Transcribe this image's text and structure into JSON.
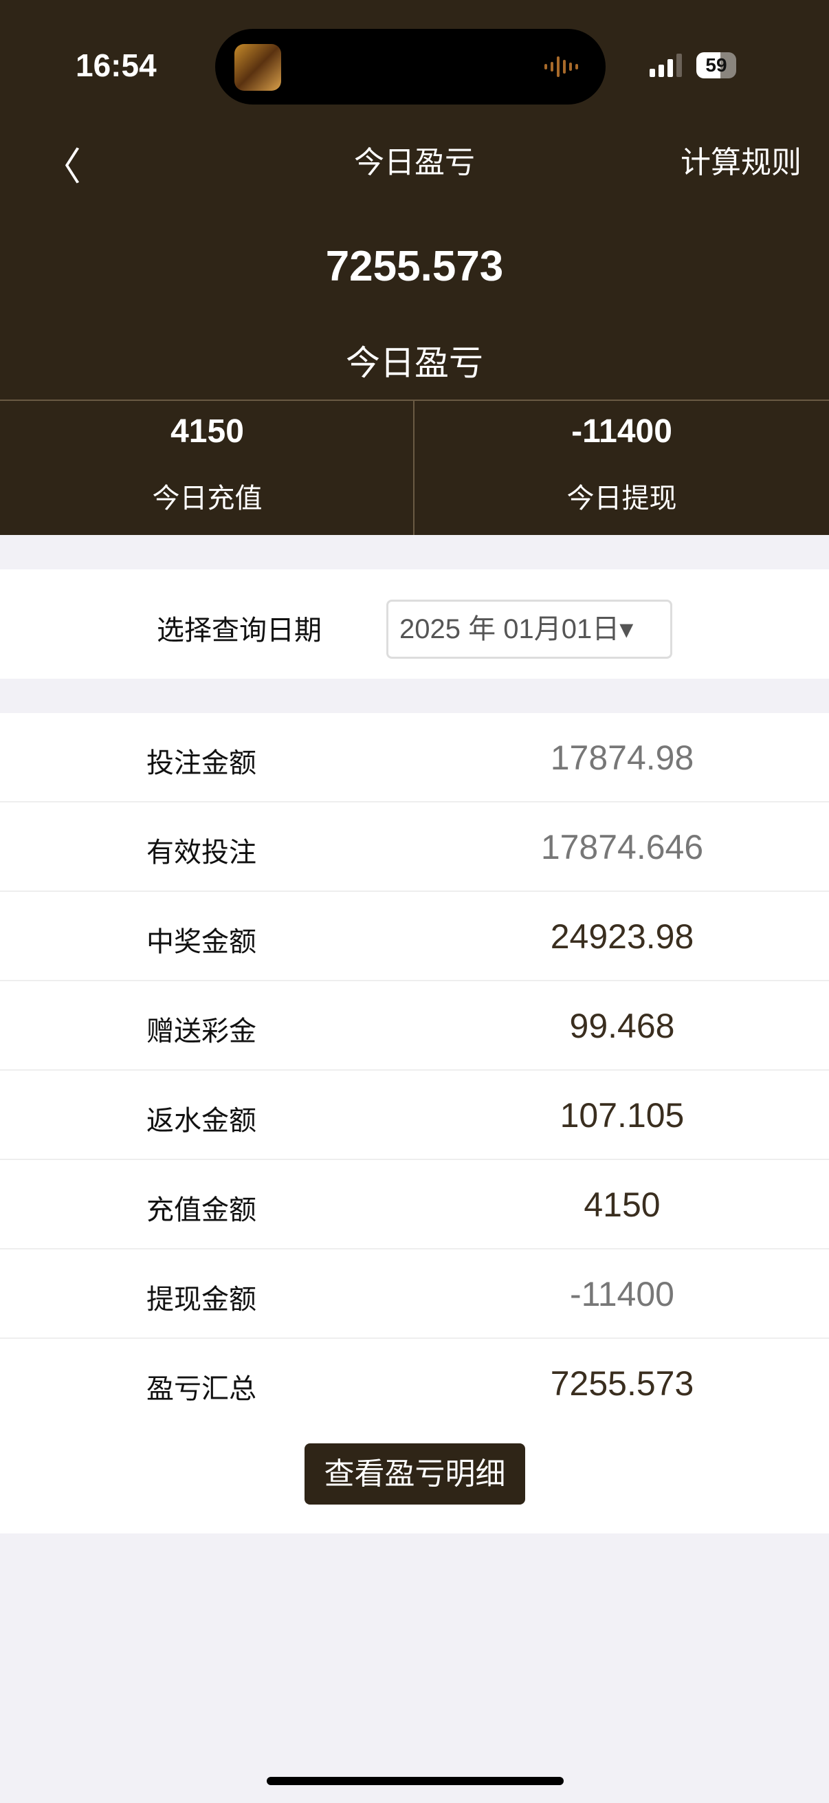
{
  "status_bar": {
    "time": "16:54",
    "battery": "59"
  },
  "nav": {
    "title": "今日盈亏",
    "rules": "计算规则"
  },
  "summary": {
    "value": "7255.573",
    "label": "今日盈亏"
  },
  "stats": [
    {
      "value": "4150",
      "label": "今日充值"
    },
    {
      "value": "-11400",
      "label": "今日提现"
    }
  ],
  "date_filter": {
    "label": "选择查询日期",
    "value": "2025 年 01月01日▾"
  },
  "rows": [
    {
      "label": "投注金额",
      "value": "17874.98",
      "color": "#777777"
    },
    {
      "label": "有效投注",
      "value": "17874.646",
      "color": "#777777"
    },
    {
      "label": "中奖金额",
      "value": "24923.98",
      "color": "#3a2e1f"
    },
    {
      "label": "赠送彩金",
      "value": "99.468",
      "color": "#3a2e1f"
    },
    {
      "label": "返水金额",
      "value": "107.105",
      "color": "#3a2e1f"
    },
    {
      "label": "充值金额",
      "value": "4150",
      "color": "#3a2e1f"
    },
    {
      "label": "提现金额",
      "value": "-11400",
      "color": "#777777"
    },
    {
      "label": "盈亏汇总",
      "value": "7255.573",
      "color": "#3a2e1f"
    }
  ],
  "detail_button": "查看盈亏明细",
  "colors": {
    "header": "#2f2517",
    "accent": "#2f2517"
  }
}
